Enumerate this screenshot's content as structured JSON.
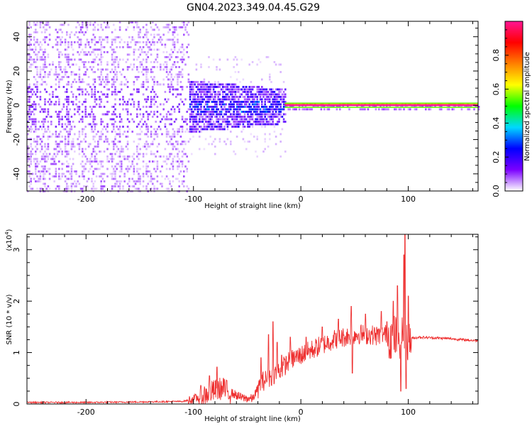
{
  "figure": {
    "title": "GN04.2023.349.04.45.G29"
  },
  "chart_data": [
    {
      "type": "heatmap",
      "xlabel": "Height of straight line (km)",
      "ylabel": "Frequency (Hz)",
      "xlim": [
        -255,
        165
      ],
      "ylim": [
        -50,
        49
      ],
      "xticks": [
        -200,
        -100,
        0,
        100
      ],
      "yticks": [
        -40,
        -20,
        0,
        20,
        40
      ],
      "grid": false,
      "colorbar": {
        "label": "Normalized spectral amplitude",
        "range": [
          0,
          1
        ],
        "ticks": [
          0.0,
          0.2,
          0.4,
          0.6,
          0.8
        ],
        "colors": [
          "#ffffff",
          "#7b00ff",
          "#0000ff",
          "#00d8ff",
          "#00ff00",
          "#ffff00",
          "#ff8000",
          "#ff0000",
          "#ff1493"
        ]
      },
      "ridge": {
        "frequency": 0,
        "x_from": -15,
        "x_to": 165,
        "amplitude": 1.0
      }
    },
    {
      "type": "line",
      "xlabel": "Height of straight line (km)",
      "ylabel": "SNR (10 * v/v)",
      "y_multiplier": "(x10",
      "y_multiplier_exp": "4",
      "y_multiplier_close": ")",
      "xlim": [
        -255,
        165
      ],
      "ylim": [
        0,
        3.3
      ],
      "xticks": [
        -200,
        -100,
        0,
        100
      ],
      "yticks": [
        0,
        1,
        2,
        3
      ],
      "grid": false,
      "color": "#ee3030",
      "trend_x": [
        -255,
        -200,
        -150,
        -110,
        -95,
        -85,
        -75,
        -65,
        -55,
        -45,
        -40,
        -35,
        -30,
        -25,
        -20,
        -15,
        -10,
        -5,
        0,
        5,
        10,
        15,
        20,
        25,
        30,
        35,
        40,
        45,
        50,
        55,
        60,
        65,
        70,
        75,
        80,
        85,
        90,
        95,
        100,
        105,
        110,
        120,
        130,
        140,
        150,
        165
      ],
      "trend_y": [
        0.03,
        0.03,
        0.04,
        0.05,
        0.12,
        0.22,
        0.3,
        0.22,
        0.12,
        0.1,
        0.3,
        0.45,
        0.5,
        0.58,
        0.65,
        0.75,
        0.85,
        0.9,
        0.95,
        1.0,
        1.05,
        1.1,
        1.15,
        1.2,
        1.25,
        1.28,
        1.3,
        1.33,
        1.35,
        1.36,
        1.35,
        1.35,
        1.33,
        1.36,
        1.35,
        1.3,
        1.3,
        1.35,
        1.28,
        1.28,
        1.3,
        1.29,
        1.28,
        1.27,
        1.25,
        1.23
      ],
      "spikes": [
        {
          "x": -85,
          "y": 0.55
        },
        {
          "x": -78,
          "y": 0.72
        },
        {
          "x": -72,
          "y": 0.5
        },
        {
          "x": -37,
          "y": 0.9
        },
        {
          "x": -30,
          "y": 1.35
        },
        {
          "x": -26,
          "y": 1.6
        },
        {
          "x": -22,
          "y": 1.2
        },
        {
          "x": -18,
          "y": 0.95
        },
        {
          "x": -10,
          "y": 1.3
        },
        {
          "x": 5,
          "y": 1.3
        },
        {
          "x": 20,
          "y": 1.5
        },
        {
          "x": 35,
          "y": 1.65
        },
        {
          "x": 47,
          "y": 1.9
        },
        {
          "x": 48,
          "y": 0.6
        },
        {
          "x": 60,
          "y": 1.75
        },
        {
          "x": 75,
          "y": 1.8
        },
        {
          "x": 80,
          "y": 1.6
        },
        {
          "x": 86,
          "y": 2.0
        },
        {
          "x": 90,
          "y": 2.3
        },
        {
          "x": 93,
          "y": 0.25
        },
        {
          "x": 96,
          "y": 2.9
        },
        {
          "x": 97,
          "y": 3.3
        },
        {
          "x": 98,
          "y": 0.3
        },
        {
          "x": 100,
          "y": 2.1
        }
      ]
    }
  ]
}
